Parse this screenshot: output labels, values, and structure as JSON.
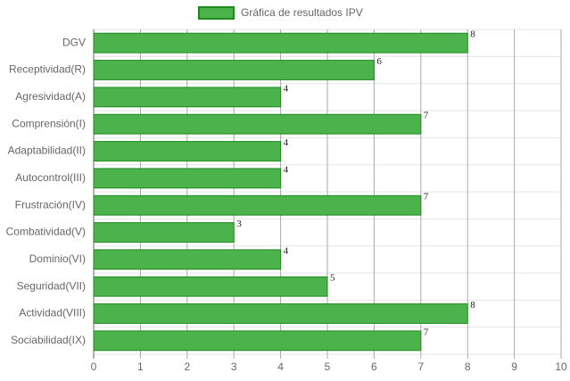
{
  "chart_data": {
    "type": "bar",
    "orientation": "horizontal",
    "categories": [
      "DGV",
      "Receptividad(R)",
      "Agresividad(A)",
      "Comprensión(I)",
      "Adaptabilidad(II)",
      "Autocontrol(III)",
      "Frustración(IV)",
      "Combatividad(V)",
      "Dominio(VI)",
      "Seguridad(VII)",
      "Actividad(VIII)",
      "Sociabilidad(IX)"
    ],
    "series": [
      {
        "name": "Gráfica de resultados IPV",
        "color": "#4cb34c",
        "border_color": "#1e8a1e",
        "values": [
          8,
          6,
          4,
          7,
          4,
          4,
          7,
          3,
          4,
          5,
          8,
          7
        ]
      }
    ],
    "xlim": [
      0,
      10
    ],
    "xticks": [
      0,
      1,
      2,
      3,
      4,
      5,
      6,
      7,
      8,
      9,
      10
    ],
    "grid": true,
    "legend": "top",
    "data_labels": true
  }
}
